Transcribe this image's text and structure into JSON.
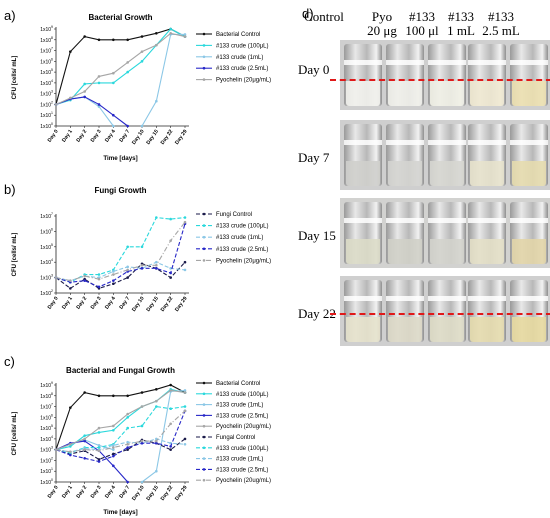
{
  "panels": {
    "a": {
      "label": "a)"
    },
    "b": {
      "label": "b)"
    },
    "c": {
      "label": "c)"
    },
    "d": {
      "label": "d)"
    }
  },
  "colors": {
    "bacterial_control": "#111111",
    "crude_100": "#2ad8dc",
    "crude_1ml": "#8bc7e6",
    "crude_2_5ml": "#2727c8",
    "pyochelin": "#a6a6a6",
    "fungi_control": "#1a1a4a",
    "red_line": "#e01818"
  },
  "chart_data": [
    {
      "panel": "a",
      "type": "line",
      "title": "Bacterial Growth",
      "xlabel": "Time [days]",
      "ylabel": "CFU [cells/ mL]",
      "categories": [
        "Day 0",
        "Day 1",
        "Day 2",
        "Day 3",
        "Day 4",
        "Day 7",
        "Day 10",
        "Day 15",
        "Day 22",
        "Day 29"
      ],
      "yscale": "log",
      "yticks": [
        "1x10^0",
        "1x10^1",
        "1x10^2",
        "1x10^3",
        "1x10^4",
        "1x10^5",
        "1x10^6",
        "1x10^7",
        "1x10^8",
        "1x10^9"
      ],
      "ylim": [
        0,
        9
      ],
      "legend_position": "right",
      "series": [
        {
          "name": "Bacterial Control",
          "color": "#111111",
          "style": "solid",
          "marker": "circle",
          "log_values": [
            2,
            6.9,
            8.3,
            8.0,
            8.0,
            8.0,
            8.3,
            8.6,
            9.0,
            8.3
          ]
        },
        {
          "name": "#133 crude (100μL)",
          "color": "#2ad8dc",
          "style": "solid",
          "marker": "circle",
          "log_values": [
            2,
            2.4,
            3.9,
            4.0,
            4.0,
            5.0,
            6.0,
            7.5,
            9.0,
            8.3
          ]
        },
        {
          "name": "#133 crude (1mL)",
          "color": "#8bc7e6",
          "style": "solid",
          "marker": "circle",
          "log_values": [
            2,
            2.5,
            2.7,
            1.8,
            0,
            null,
            0,
            2.3,
            8.5,
            8.5
          ]
        },
        {
          "name": "#133 crude (2.5mL)",
          "color": "#2727c8",
          "style": "solid",
          "marker": "circle",
          "log_values": [
            2,
            2.5,
            2.7,
            2.0,
            1.0,
            0,
            null,
            null,
            null,
            null
          ]
        },
        {
          "name": "Pyochelin (20μg/mL)",
          "color": "#a6a6a6",
          "style": "solid",
          "marker": "circle",
          "log_values": [
            2,
            2.6,
            3.2,
            4.6,
            4.9,
            5.9,
            6.9,
            7.5,
            8.6,
            8.3
          ]
        }
      ]
    },
    {
      "panel": "b",
      "type": "line",
      "title": "Fungi Growth",
      "xlabel": "",
      "ylabel": "CFU [cells/ mL]",
      "categories": [
        "Day 0",
        "Day 1",
        "Day 2",
        "Day 3",
        "Day 4",
        "Day 7",
        "Day 10",
        "Day 15",
        "Day 22",
        "Day 29"
      ],
      "yscale": "log",
      "yticks": [
        "1x10^2",
        "1x10^3",
        "1x10^4",
        "1x10^5",
        "1x10^6",
        "1x10^7"
      ],
      "ylim": [
        2,
        7
      ],
      "legend_position": "right",
      "series": [
        {
          "name": "Fungi Control",
          "color": "#1a1a4a",
          "style": "dashed",
          "marker": "circle",
          "log_values": [
            3.0,
            2.3,
            2.9,
            2.3,
            2.6,
            3.0,
            3.9,
            3.6,
            3.0,
            4.0
          ]
        },
        {
          "name": "#133 crude (100μL)",
          "color": "#2ad8dc",
          "style": "dashed",
          "marker": "circle",
          "log_values": [
            3.0,
            2.7,
            3.2,
            3.2,
            3.5,
            5.0,
            5.0,
            6.9,
            6.8,
            6.9
          ]
        },
        {
          "name": "#133 crude (1mL)",
          "color": "#8bc7e6",
          "style": "dashed",
          "marker": "circle",
          "log_values": [
            3.0,
            2.8,
            3.1,
            3.0,
            3.4,
            3.7,
            3.6,
            4.0,
            3.6,
            3.5
          ]
        },
        {
          "name": "#133 crude (2.5mL)",
          "color": "#2727c8",
          "style": "dashed",
          "marker": "circle",
          "log_values": [
            3.0,
            2.7,
            2.8,
            2.4,
            2.8,
            3.4,
            3.6,
            3.6,
            3.3,
            6.5
          ]
        },
        {
          "name": "Pyochelin (20μg/mL)",
          "color": "#a6a6a6",
          "style": "dashdot",
          "marker": "circle",
          "log_values": [
            3.0,
            2.8,
            3.1,
            2.9,
            3.2,
            3.5,
            3.8,
            3.8,
            5.4,
            6.6
          ]
        }
      ]
    },
    {
      "panel": "c",
      "type": "line",
      "title": "Bacterial and Fungal Growth",
      "xlabel": "Time [days]",
      "ylabel": "CFU [cells/ mL]",
      "categories": [
        "Day 0",
        "Day 1",
        "Day 2",
        "Day 3",
        "Day 4",
        "Day 7",
        "Day 10",
        "Day 15",
        "Day 22",
        "Day 29"
      ],
      "yscale": "log",
      "yticks": [
        "1x10^0",
        "1x10^1",
        "1x10^2",
        "1x10^3",
        "1x10^4",
        "1x10^5",
        "1x10^6",
        "1x10^7",
        "1x10^8",
        "1x10^9"
      ],
      "ylim": [
        0,
        9
      ],
      "legend_position": "right",
      "series": [
        {
          "name": "Bacterial Control",
          "color": "#111111",
          "style": "solid",
          "marker": "circle",
          "log_values": [
            3,
            6.9,
            8.3,
            8.0,
            8.0,
            8.0,
            8.3,
            8.6,
            9.0,
            8.3
          ]
        },
        {
          "name": "#133 crude (100μL)",
          "color": "#2ad8dc",
          "style": "solid",
          "marker": "circle",
          "log_values": [
            3,
            3.3,
            4.3,
            4.6,
            4.8,
            6.0,
            7.0,
            7.5,
            8.6,
            8.3
          ]
        },
        {
          "name": "#133 crude (1mL)",
          "color": "#8bc7e6",
          "style": "solid",
          "marker": "circle",
          "log_values": [
            3,
            3.5,
            3.9,
            3.4,
            3.0,
            null,
            0,
            1.0,
            8.4,
            8.5
          ]
        },
        {
          "name": "#133 crude (2.5mL)",
          "color": "#2727c8",
          "style": "solid",
          "marker": "circle",
          "log_values": [
            3,
            3.6,
            3.8,
            2.9,
            1.5,
            0,
            null,
            null,
            null,
            null
          ]
        },
        {
          "name": "Pyochelin (20ug/mL)",
          "color": "#a6a6a6",
          "style": "solid",
          "marker": "circle",
          "log_values": [
            3,
            3.5,
            4.0,
            5.0,
            5.2,
            6.3,
            7.0,
            7.5,
            8.5,
            8.3
          ]
        },
        {
          "name": "Fungal Control",
          "color": "#1a1a4a",
          "style": "dashed",
          "marker": "circle",
          "log_values": [
            3,
            2.6,
            2.9,
            2.1,
            2.6,
            3.0,
            3.9,
            3.6,
            3.0,
            4.0
          ]
        },
        {
          "name": "#133 crude (100μL)",
          "color": "#2ad8dc",
          "style": "dashed",
          "marker": "circle",
          "log_values": [
            3,
            2.7,
            3.2,
            3.2,
            3.5,
            5.0,
            5.2,
            7.0,
            6.8,
            7.0
          ]
        },
        {
          "name": "#133 crude (1mL)",
          "color": "#8bc7e6",
          "style": "dashed",
          "marker": "circle",
          "log_values": [
            3,
            2.8,
            3.1,
            3.0,
            3.4,
            3.7,
            3.6,
            4.0,
            3.6,
            3.5
          ]
        },
        {
          "name": "#133 crude (2.5mL)",
          "color": "#2727c8",
          "style": "dashed",
          "marker": "circle",
          "log_values": [
            3,
            2.5,
            2.2,
            1.9,
            2.4,
            3.2,
            3.6,
            3.6,
            3.3,
            6.6
          ]
        },
        {
          "name": "Pyochelin (20ug/mL)",
          "color": "#a6a6a6",
          "style": "dashdot",
          "marker": "circle",
          "log_values": [
            3,
            2.8,
            3.0,
            2.9,
            3.2,
            3.5,
            3.8,
            3.8,
            5.4,
            6.6
          ]
        }
      ]
    }
  ],
  "photos": {
    "columns": [
      "Control",
      "Pyo\n20 μg",
      "#133\n100 μl",
      "#133\n1 mL",
      "#133\n2.5 mL"
    ],
    "rows": [
      {
        "label": "Day 0",
        "red_line": true,
        "liquid": [
          "#f1f1ec",
          "#f0f0ea",
          "#efefe6",
          "#efe9d2",
          "#ece0b0"
        ]
      },
      {
        "label": "Day 7",
        "red_line": false,
        "liquid": [
          "#cfcfcc",
          "#d4d4d0",
          "#d6d6d0",
          "#e7e2cc",
          "#e6dcae"
        ]
      },
      {
        "label": "Day 15",
        "red_line": false,
        "liquid": [
          "#dcdcc8",
          "#d0d0c8",
          "#d3d3cc",
          "#e3dfc6",
          "#e2d5a8"
        ]
      },
      {
        "label": "Day 22",
        "red_line": true,
        "liquid": [
          "#e6e2cc",
          "#ddd9c8",
          "#dedcc6",
          "#e5dcae",
          "#e7d9a0"
        ]
      }
    ]
  }
}
